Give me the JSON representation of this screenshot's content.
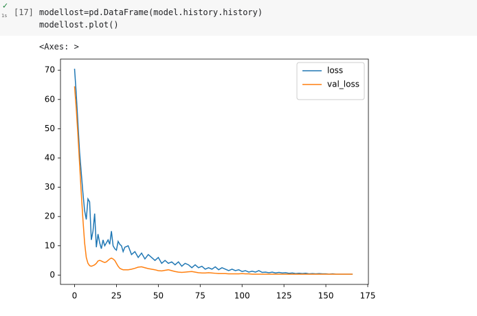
{
  "cell": {
    "prompt": "[17]",
    "duration": "1s",
    "code_lines": [
      "modellost=pd.DataFrame(model.history.history)",
      "modellost.plot()"
    ],
    "output_text": "<Axes: >"
  },
  "chart_data": {
    "type": "line",
    "x": [
      0,
      1,
      2,
      3,
      4,
      5,
      6,
      7,
      8,
      9,
      10,
      11,
      12,
      13,
      14,
      15,
      16,
      17,
      18,
      19,
      20,
      21,
      22,
      23,
      24,
      25,
      26,
      27,
      28,
      29,
      30,
      32,
      34,
      36,
      38,
      40,
      42,
      44,
      46,
      48,
      50,
      52,
      54,
      56,
      58,
      60,
      62,
      64,
      66,
      68,
      70,
      72,
      74,
      76,
      78,
      80,
      82,
      84,
      86,
      88,
      90,
      92,
      94,
      96,
      98,
      100,
      102,
      104,
      106,
      108,
      110,
      112,
      114,
      116,
      118,
      120,
      122,
      124,
      126,
      128,
      130,
      132,
      134,
      136,
      138,
      140,
      142,
      144,
      146,
      148,
      150,
      152,
      154,
      156,
      158,
      160,
      162,
      164,
      166
    ],
    "series": [
      {
        "name": "loss",
        "color": "#1f77b4",
        "values": [
          70.5,
          62,
          52,
          42,
          35,
          28,
          22,
          19,
          26,
          25,
          12,
          15,
          21,
          9.5,
          14,
          11,
          9,
          12,
          10,
          11,
          12,
          10.5,
          15,
          10,
          9,
          8.5,
          11.5,
          10.5,
          10,
          8,
          9.5,
          10,
          7,
          8,
          6,
          7.5,
          5.5,
          7,
          6,
          5,
          6,
          4,
          5,
          4,
          4.5,
          3.5,
          4.5,
          3,
          4,
          3.5,
          2.5,
          3.5,
          2.5,
          3,
          2,
          2.5,
          2,
          2.8,
          1.8,
          2.5,
          2,
          1.5,
          2,
          1.5,
          1.8,
          1.2,
          1.5,
          1,
          1.3,
          1,
          1.5,
          0.9,
          1,
          0.8,
          1,
          0.7,
          0.9,
          0.7,
          0.8,
          0.6,
          0.7,
          0.5,
          0.6,
          0.5,
          0.6,
          0.4,
          0.5,
          0.4,
          0.5,
          0.4,
          0.4,
          0.3,
          0.4,
          0.3,
          0.3,
          0.3,
          0.3,
          0.3,
          0.3
        ]
      },
      {
        "name": "val_loss",
        "color": "#ff7f0e",
        "values": [
          64.5,
          57,
          48,
          38,
          28,
          19,
          11,
          6,
          4,
          3.2,
          3.0,
          3.2,
          3.5,
          4,
          4.8,
          5,
          4.8,
          4.5,
          4.3,
          4.5,
          5,
          5.5,
          5.8,
          5.5,
          5,
          4,
          3,
          2.3,
          2,
          1.8,
          1.8,
          1.8,
          2,
          2.3,
          2.7,
          2.8,
          2.5,
          2.2,
          2,
          1.8,
          1.5,
          1.4,
          1.6,
          1.8,
          1.5,
          1.2,
          1,
          0.9,
          1,
          1.1,
          1.2,
          1,
          0.8,
          0.7,
          0.7,
          0.8,
          0.7,
          0.6,
          0.5,
          0.5,
          0.5,
          0.4,
          0.4,
          0.4,
          0.4,
          0.5,
          0.4,
          0.4,
          0.3,
          0.3,
          0.3,
          0.3,
          0.3,
          0.3,
          0.3,
          0.3,
          0.3,
          0.3,
          0.3,
          0.3,
          0.3,
          0.3,
          0.3,
          0.3,
          0.3,
          0.3,
          0.3,
          0.3,
          0.3,
          0.3,
          0.3,
          0.3,
          0.3,
          0.3,
          0.3,
          0.3,
          0.3,
          0.3,
          0.3
        ]
      }
    ],
    "xlim": [
      -8.4,
      175.4
    ],
    "xticks": [
      0,
      25,
      50,
      75,
      100,
      125,
      150,
      175
    ],
    "ylim": [
      -3.2,
      73.8
    ],
    "yticks": [
      0,
      10,
      20,
      30,
      40,
      50,
      60,
      70
    ],
    "legend": "upper right"
  }
}
